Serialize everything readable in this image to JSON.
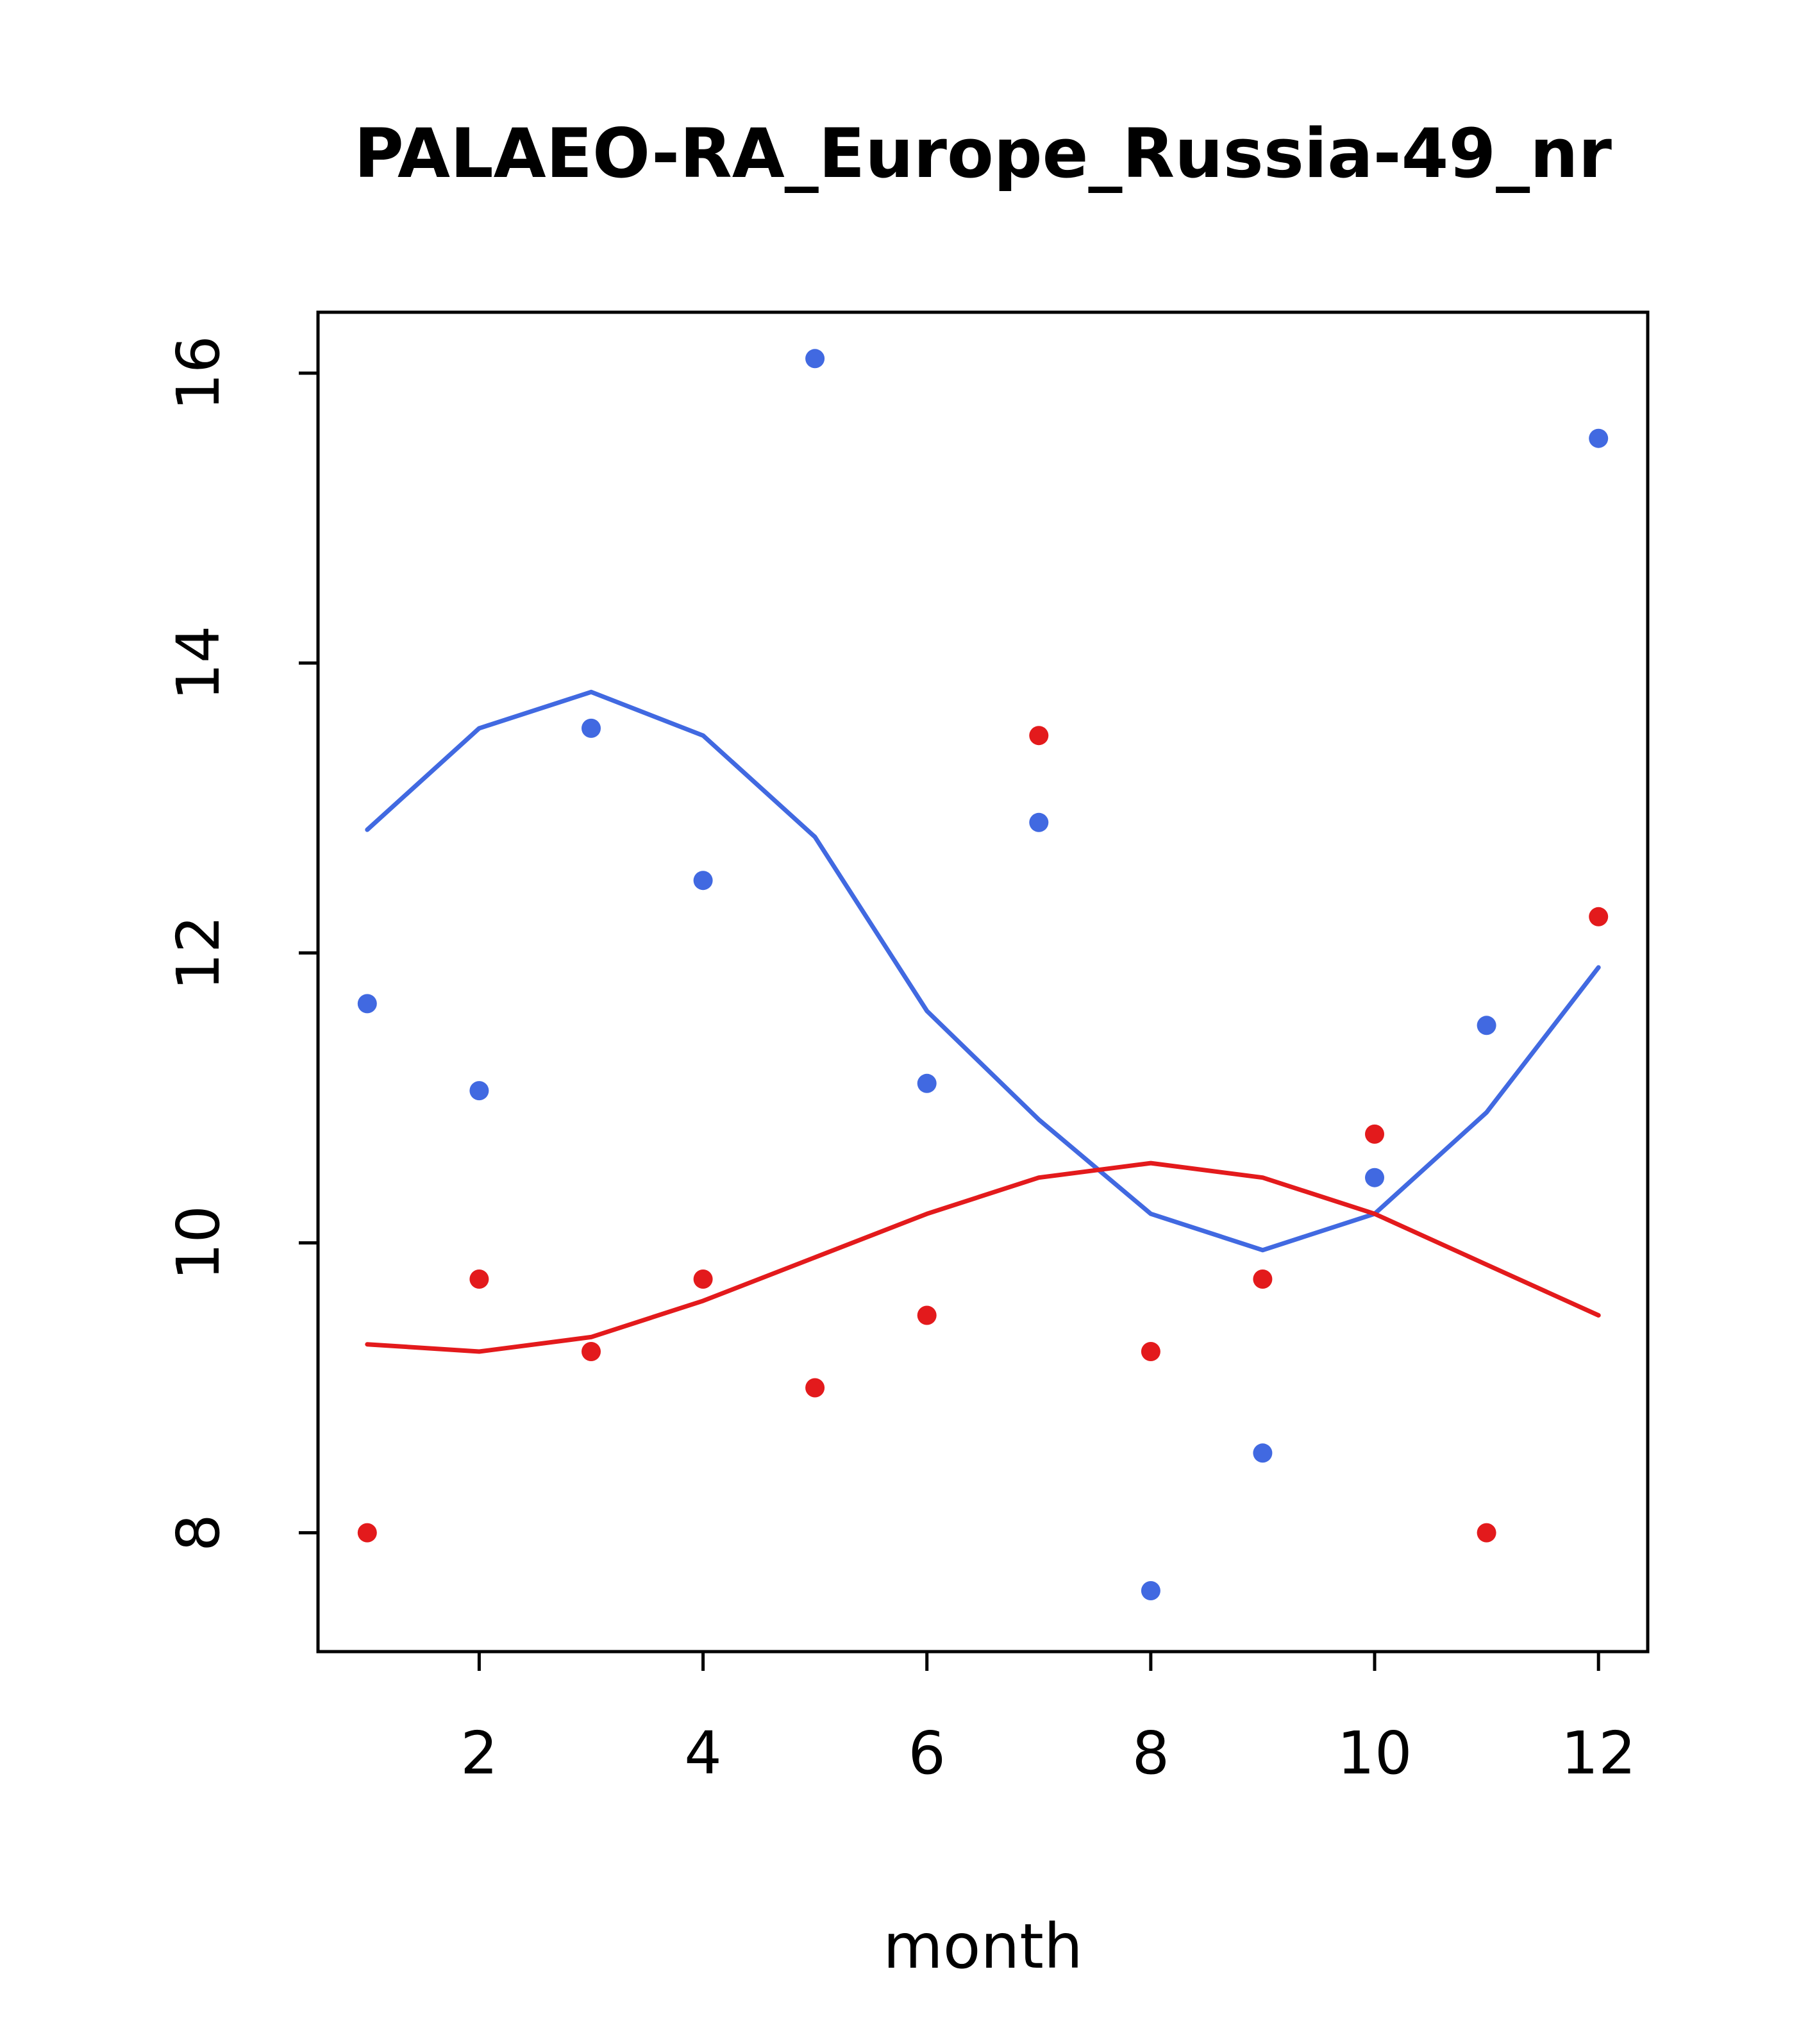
{
  "chart_data": {
    "type": "scatter",
    "title": "PALAEO-RA_Europe_Russia-49_nr",
    "xlabel": "month",
    "ylabel": "",
    "x": [
      1,
      2,
      3,
      4,
      5,
      6,
      7,
      8,
      9,
      10,
      11,
      12
    ],
    "xlim": [
      0.56,
      12.44
    ],
    "ylim": [
      7.18,
      16.42
    ],
    "xticks": [
      2,
      4,
      6,
      8,
      10,
      12
    ],
    "yticks": [
      8,
      10,
      12,
      14,
      16
    ],
    "grid": false,
    "legend": "none",
    "colors": {
      "blue": "#4169e1",
      "red": "#e31a1c",
      "axis": "#000000"
    },
    "series": [
      {
        "name": "blue-points",
        "kind": "points",
        "color": "#4169e1",
        "values": [
          11.65,
          11.05,
          13.55,
          12.5,
          16.1,
          11.1,
          12.9,
          7.6,
          8.55,
          10.45,
          11.5,
          15.55
        ]
      },
      {
        "name": "red-points",
        "kind": "points",
        "color": "#e31a1c",
        "values": [
          8.0,
          9.75,
          9.25,
          9.75,
          9.0,
          9.5,
          13.5,
          9.25,
          9.75,
          10.75,
          8.0,
          12.25
        ]
      },
      {
        "name": "blue-smooth-line",
        "kind": "line",
        "color": "#4169e1",
        "values": [
          12.85,
          13.55,
          13.8,
          13.5,
          12.8,
          11.6,
          10.85,
          10.2,
          9.95,
          10.2,
          10.9,
          11.9
        ]
      },
      {
        "name": "red-smooth-line",
        "kind": "line",
        "color": "#e31a1c",
        "values": [
          9.3,
          9.25,
          9.35,
          9.6,
          9.9,
          10.2,
          10.45,
          10.55,
          10.45,
          10.2,
          9.85,
          9.5
        ]
      }
    ]
  }
}
